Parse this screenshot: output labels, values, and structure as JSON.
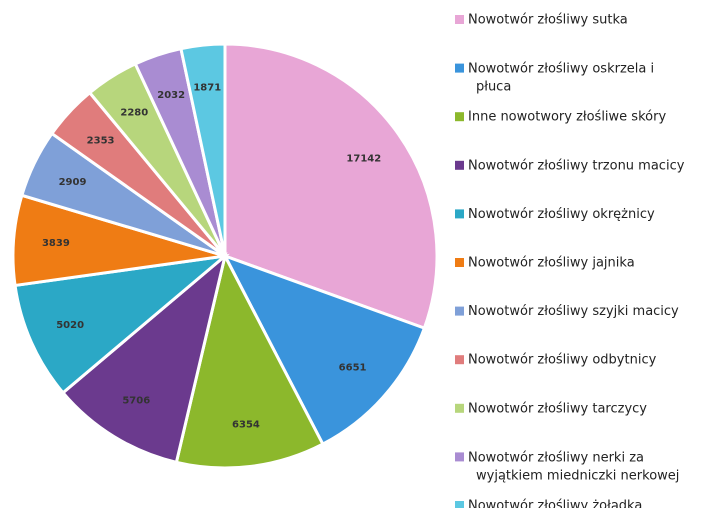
{
  "chart_data": {
    "type": "pie",
    "categories": [
      "Nowotwór złośliwy sutka",
      "Nowotwór złośliwy oskrzela i płuca",
      "Inne nowotwory złośliwe skóry",
      "Nowotwór złośliwy trzonu macicy",
      "Nowotwór złośliwy okrężnicy",
      "Nowotwór złośliwy jajnika",
      "Nowotwór złośliwy szyjki macicy",
      "Nowotwór złośliwy odbytnicy",
      "Nowotwór złośliwy tarczycy",
      "Nowotwór złośliwy nerki za wyjątkiem miedniczki nerkowej",
      "Nowotwór złośliwy żołądka"
    ],
    "values": [
      17142,
      6651,
      6354,
      5706,
      5020,
      3839,
      2909,
      2353,
      2280,
      2032,
      1871
    ],
    "colors": [
      "#e8a6d6",
      "#3a94dc",
      "#8cb82c",
      "#6b3a8e",
      "#2ba8c6",
      "#ef7c14",
      "#7fa0d8",
      "#e07c7c",
      "#b7d67c",
      "#a98cd2",
      "#5cc8e2"
    ],
    "legend": "right"
  }
}
